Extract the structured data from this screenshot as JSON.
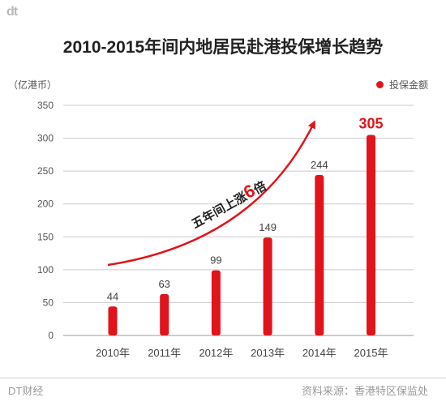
{
  "brand": {
    "logo": "dt",
    "footer_left": "DT财经",
    "source": "资料来源：香港特区保监处"
  },
  "colors": {
    "bar": "#e1141c",
    "highlight": "#e1141c",
    "grid": "#cccccc"
  },
  "chart_data": {
    "type": "bar",
    "title": "2010-2015年间内地居民赴港投保增长趋势",
    "ylabel": "（亿港币）",
    "legend": "投保金额",
    "legend_position": "top-right",
    "grid": true,
    "ylim": [
      0,
      350
    ],
    "yticks": [
      0,
      50,
      100,
      150,
      200,
      250,
      300,
      350
    ],
    "categories": [
      "2010年",
      "2011年",
      "2012年",
      "2013年",
      "2014年",
      "2015年"
    ],
    "series": [
      {
        "name": "投保金额",
        "values": [
          44,
          63,
          99,
          149,
          244,
          305
        ]
      }
    ],
    "annotation": "五年间上涨6倍",
    "highlight_index": 5
  }
}
